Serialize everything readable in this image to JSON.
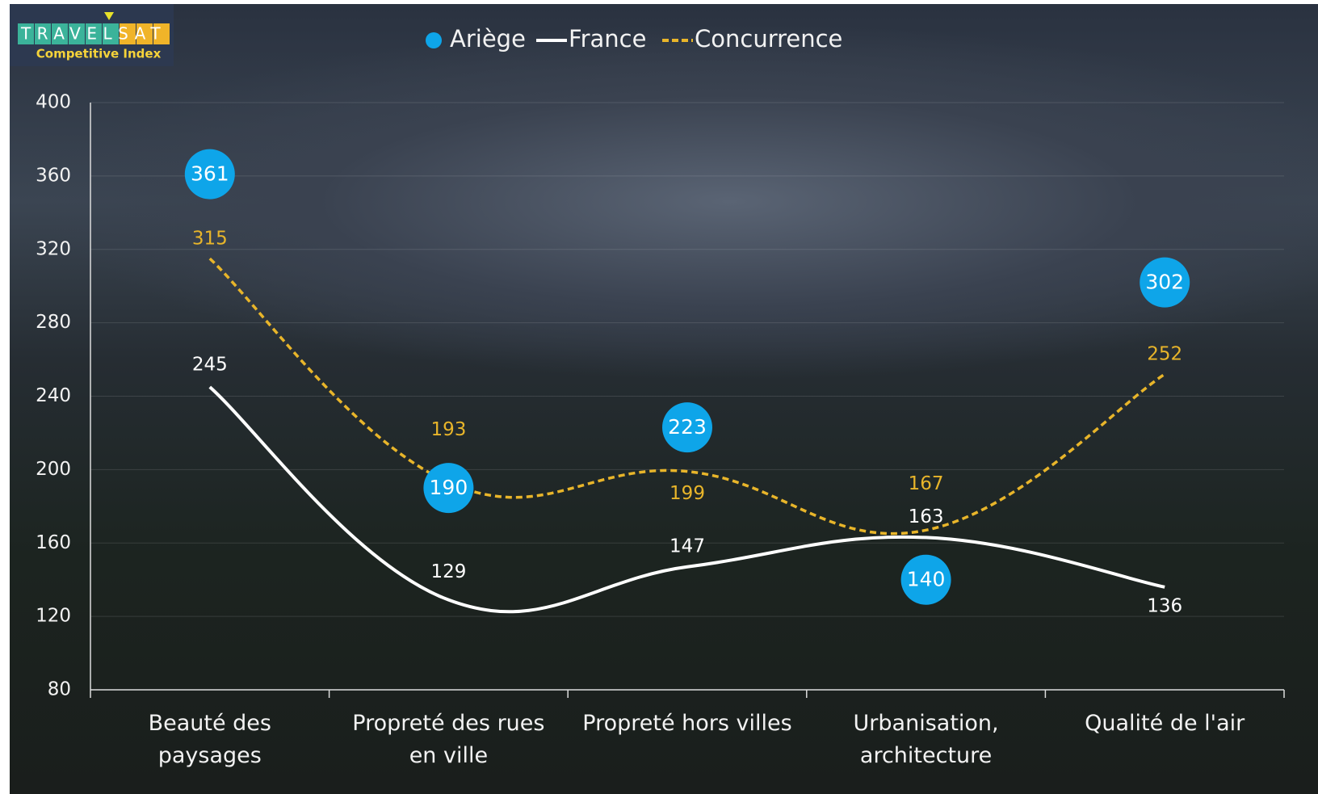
{
  "logo": {
    "brand": "TRAVELSAT",
    "tagline": "Competitive Index"
  },
  "chart_data": {
    "type": "line",
    "categories": [
      "Beauté des paysages",
      "Propreté des rues en ville",
      "Propreté hors villes",
      "Urbanisation, architecture",
      "Qualité de l'air"
    ],
    "series": [
      {
        "name": "Ariège",
        "color": "#0ea5e9",
        "style": "marker",
        "values": [
          361,
          190,
          223,
          140,
          302
        ]
      },
      {
        "name": "France",
        "color": "#ffffff",
        "style": "solid",
        "values": [
          245,
          129,
          147,
          163,
          136
        ]
      },
      {
        "name": "Concurrence",
        "color": "#e8b52a",
        "style": "dashed",
        "values": [
          315,
          193,
          199,
          167,
          252
        ]
      }
    ],
    "ylim": [
      80,
      400
    ],
    "yticks": [
      80,
      120,
      160,
      200,
      240,
      280,
      320,
      360,
      400
    ],
    "grid": true,
    "legend": "top"
  }
}
